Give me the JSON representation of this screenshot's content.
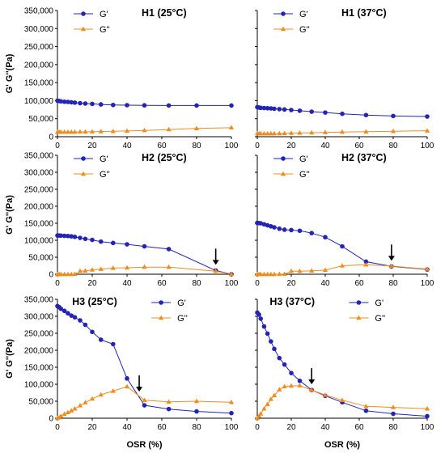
{
  "figure": {
    "ylabel": "G' G''(Pa)",
    "xlabel": "OSR (%)",
    "colors": {
      "gp": "#2323b5",
      "gpp": "#f08c1e",
      "arrow": "#000000"
    }
  },
  "chart_data": [
    {
      "id": "H1-25",
      "type": "line",
      "title": "H1 (25°C)",
      "xlim": [
        0,
        100
      ],
      "ylim": [
        0,
        350000
      ],
      "x_ticks": [
        "0",
        "20",
        "40",
        "60",
        "80",
        "100"
      ],
      "y_ticks": [
        "0",
        "50,000",
        "100,000",
        "150,000",
        "200,000",
        "250,000",
        "300,000",
        "350,000"
      ],
      "show_ylabel": true,
      "show_xlabel": false,
      "legend_position": "top-left",
      "arrow": null,
      "series": [
        {
          "name": "G'",
          "marker": "circle",
          "x": [
            0,
            1,
            2,
            4,
            6,
            8,
            10,
            13,
            16,
            20,
            25,
            32,
            40,
            50,
            64,
            80,
            100
          ],
          "y": [
            100000,
            99000,
            98000,
            97000,
            96500,
            95500,
            94500,
            93000,
            92000,
            91000,
            89500,
            88000,
            87500,
            87000,
            86500,
            86500,
            86500
          ]
        },
        {
          "name": "G''",
          "marker": "triangle",
          "x": [
            0,
            1,
            2,
            4,
            6,
            8,
            10,
            13,
            16,
            20,
            25,
            32,
            40,
            50,
            64,
            80,
            100
          ],
          "y": [
            13000,
            13000,
            13000,
            13000,
            13000,
            13000,
            13000,
            13500,
            13500,
            14000,
            14500,
            15000,
            16000,
            17500,
            20000,
            23000,
            25000
          ]
        }
      ]
    },
    {
      "id": "H1-37",
      "type": "line",
      "title": "H1 (37°C)",
      "xlim": [
        0,
        100
      ],
      "ylim": [
        0,
        350000
      ],
      "x_ticks": [
        "0",
        "20",
        "40",
        "60",
        "80",
        "100"
      ],
      "show_ylabel": false,
      "show_xlabel": false,
      "legend_position": "top-left",
      "arrow": null,
      "series": [
        {
          "name": "G'",
          "marker": "circle",
          "x": [
            0,
            1,
            2,
            4,
            6,
            8,
            10,
            13,
            16,
            20,
            25,
            32,
            40,
            50,
            64,
            80,
            100
          ],
          "y": [
            82000,
            81000,
            80000,
            79500,
            79000,
            78500,
            77500,
            76500,
            75500,
            74000,
            72000,
            69500,
            67000,
            63500,
            60000,
            57500,
            56000
          ]
        },
        {
          "name": "G''",
          "marker": "triangle",
          "x": [
            0,
            1,
            2,
            4,
            6,
            8,
            10,
            13,
            16,
            20,
            25,
            32,
            40,
            50,
            64,
            80,
            100
          ],
          "y": [
            9000,
            8500,
            8500,
            8500,
            8500,
            8500,
            8800,
            9000,
            9500,
            10000,
            10500,
            11000,
            12000,
            13000,
            14000,
            15000,
            16500
          ]
        }
      ]
    },
    {
      "id": "H2-25",
      "type": "line",
      "title": "H2 (25°C)",
      "xlim": [
        0,
        100
      ],
      "ylim": [
        0,
        350000
      ],
      "x_ticks": [
        "0",
        "20",
        "40",
        "60",
        "80",
        "100"
      ],
      "y_ticks": [
        "0",
        "50,000",
        "100,000",
        "150,000",
        "200,000",
        "250,000",
        "300,000",
        "350,000"
      ],
      "show_ylabel": true,
      "show_xlabel": false,
      "legend_position": "top-left",
      "arrow": 91,
      "series": [
        {
          "name": "G'",
          "marker": "circle",
          "x": [
            0,
            1,
            2,
            4,
            6,
            8,
            10,
            13,
            16,
            20,
            25,
            32,
            40,
            50,
            64,
            91,
            100
          ],
          "y": [
            114000,
            114000,
            113500,
            113000,
            112500,
            111500,
            110000,
            107000,
            104000,
            101000,
            96000,
            92000,
            88000,
            82000,
            74000,
            11000,
            0
          ]
        },
        {
          "name": "G''",
          "marker": "triangle",
          "x": [
            0,
            1,
            2,
            4,
            6,
            8,
            10,
            13,
            16,
            20,
            25,
            32,
            40,
            50,
            64,
            91,
            100
          ],
          "y": [
            0,
            0,
            0,
            0,
            0,
            0,
            500,
            9000,
            10000,
            13000,
            15000,
            18000,
            19000,
            21000,
            21000,
            9000,
            0
          ]
        }
      ]
    },
    {
      "id": "H2-37",
      "type": "line",
      "title": "H2 (37°C)",
      "xlim": [
        0,
        100
      ],
      "ylim": [
        0,
        350000
      ],
      "x_ticks": [
        "0",
        "20",
        "40",
        "60",
        "80",
        "100"
      ],
      "show_ylabel": false,
      "show_xlabel": false,
      "legend_position": "top-left",
      "arrow": 79,
      "series": [
        {
          "name": "G'",
          "marker": "circle",
          "x": [
            0,
            1,
            2,
            4,
            6,
            8,
            10,
            13,
            16,
            20,
            25,
            32,
            40,
            50,
            64,
            79,
            100
          ],
          "y": [
            151000,
            150500,
            150000,
            147000,
            144000,
            141000,
            138000,
            134000,
            131000,
            130000,
            128000,
            121000,
            109000,
            82000,
            37000,
            23000,
            14000
          ]
        },
        {
          "name": "G''",
          "marker": "triangle",
          "x": [
            0,
            1,
            2,
            4,
            6,
            8,
            10,
            13,
            16,
            20,
            25,
            32,
            40,
            50,
            64,
            79,
            100
          ],
          "y": [
            0,
            0,
            0,
            0,
            0,
            0,
            0,
            200,
            500,
            9000,
            9000,
            10000,
            12000,
            25000,
            28000,
            24000,
            15000
          ]
        }
      ]
    },
    {
      "id": "H3-25",
      "type": "line",
      "title": "H3 (25°C)",
      "xlim": [
        0,
        100
      ],
      "ylim": [
        0,
        350000
      ],
      "x_ticks": [
        "0",
        "20",
        "40",
        "60",
        "80",
        "100"
      ],
      "y_ticks": [
        "0",
        "50,000",
        "100,000",
        "150,000",
        "200,000",
        "250,000",
        "300,000",
        "350,000"
      ],
      "show_ylabel": true,
      "show_xlabel": true,
      "legend_position": "top-right",
      "arrow": 47,
      "series": [
        {
          "name": "G'",
          "marker": "circle",
          "x": [
            0,
            1,
            2,
            4,
            6,
            8,
            10,
            13,
            16,
            20,
            25,
            32,
            40,
            50,
            64,
            80,
            100
          ],
          "y": [
            330000,
            327000,
            322000,
            316000,
            309000,
            302000,
            297000,
            288000,
            275000,
            254000,
            231000,
            218000,
            117000,
            38000,
            27000,
            20000,
            15000
          ]
        },
        {
          "name": "G''",
          "marker": "triangle",
          "x": [
            0,
            1,
            2,
            4,
            6,
            8,
            10,
            13,
            16,
            20,
            25,
            32,
            40,
            50,
            64,
            80,
            100
          ],
          "y": [
            0,
            2000,
            6000,
            12000,
            17000,
            22000,
            28000,
            37000,
            46000,
            57000,
            69000,
            80000,
            93000,
            53000,
            48000,
            50000,
            47000
          ]
        }
      ]
    },
    {
      "id": "H3-37",
      "type": "line",
      "title": "H3 (37°C)",
      "xlim": [
        0,
        100
      ],
      "ylim": [
        0,
        350000
      ],
      "x_ticks": [
        "0",
        "20",
        "40",
        "60",
        "80",
        "100"
      ],
      "show_ylabel": false,
      "show_xlabel": true,
      "legend_position": "top-right",
      "arrow": 32,
      "series": [
        {
          "name": "G'",
          "marker": "circle",
          "x": [
            0,
            1,
            2,
            4,
            6,
            8,
            10,
            13,
            16,
            20,
            25,
            32,
            40,
            50,
            64,
            80,
            100
          ],
          "y": [
            311000,
            305000,
            293000,
            270000,
            249000,
            226000,
            204000,
            177000,
            158000,
            133000,
            110000,
            83000,
            66000,
            47000,
            22000,
            13000,
            6000
          ]
        },
        {
          "name": "G''",
          "marker": "triangle",
          "x": [
            0,
            1,
            2,
            4,
            6,
            8,
            10,
            13,
            16,
            20,
            25,
            32,
            40,
            50,
            64,
            80,
            100
          ],
          "y": [
            0,
            6000,
            13000,
            28000,
            41000,
            56000,
            67000,
            84000,
            93000,
            95000,
            96000,
            83000,
            68000,
            53000,
            35000,
            32000,
            28000
          ]
        }
      ]
    }
  ]
}
